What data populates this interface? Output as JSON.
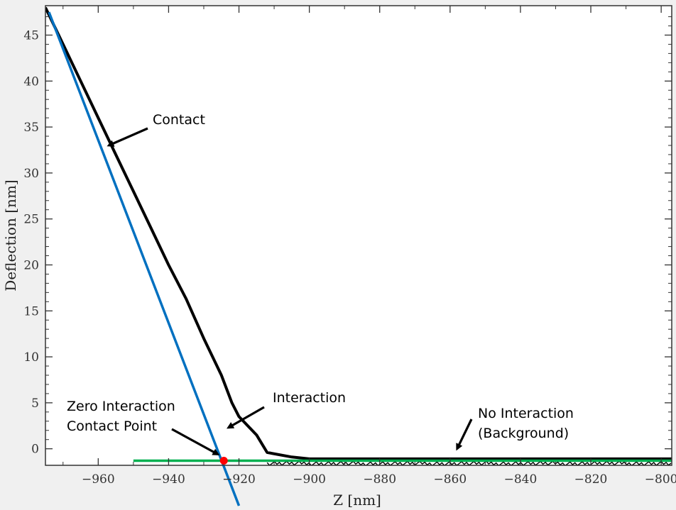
{
  "chart_data": {
    "type": "line",
    "title": "",
    "xlabel": "Z [nm]",
    "ylabel": "Deflection [nm]",
    "xlim": [
      -975,
      -797
    ],
    "ylim": [
      -1.8,
      48.2
    ],
    "xticks": [
      -960,
      -940,
      -920,
      -900,
      -880,
      -860,
      -840,
      -820,
      -800
    ],
    "xtick_labels": [
      "−960",
      "−940",
      "−920",
      "−900",
      "−880",
      "−860",
      "−840",
      "−820",
      "−800"
    ],
    "yticks": [
      0,
      5,
      10,
      15,
      20,
      25,
      30,
      35,
      40,
      45
    ],
    "ytick_labels": [
      "0",
      "5",
      "10",
      "15",
      "20",
      "25",
      "30",
      "35",
      "40",
      "45"
    ],
    "grid": false,
    "series": [
      {
        "role": "measured",
        "color": "#000000",
        "points": [
          [
            -975,
            48.0
          ],
          [
            -970,
            44.0
          ],
          [
            -965,
            40.0
          ],
          [
            -960,
            36.0
          ],
          [
            -955,
            32.0
          ],
          [
            -950,
            28.0
          ],
          [
            -945,
            24.0
          ],
          [
            -940,
            20.0
          ],
          [
            -935,
            16.3
          ],
          [
            -930,
            12.0
          ],
          [
            -925,
            8.0
          ],
          [
            -922,
            5.0
          ],
          [
            -920,
            3.5
          ],
          [
            -915,
            1.5
          ],
          [
            -912,
            -0.4
          ],
          [
            -905,
            -0.9
          ],
          [
            -900,
            -1.1
          ],
          [
            -880,
            -1.1
          ],
          [
            -860,
            -1.1
          ],
          [
            -840,
            -1.1
          ],
          [
            -820,
            -1.1
          ],
          [
            -797,
            -1.1
          ]
        ]
      },
      {
        "role": "contact-fit",
        "color": "#0070c0",
        "points": [
          [
            -974,
            47.5
          ],
          [
            -920,
            -6.2
          ]
        ]
      },
      {
        "role": "background-fit",
        "color": "#00b050",
        "points": [
          [
            -950,
            -1.3
          ],
          [
            -797,
            -1.3
          ]
        ]
      }
    ],
    "highlight_point": {
      "x": -924.3,
      "y": -1.3,
      "color": "#ff0000"
    },
    "annotations": [
      {
        "id": "contact",
        "text": "Contact",
        "point_to": [
          -957,
          33.0
        ]
      },
      {
        "id": "interaction",
        "text": "Interaction",
        "point_to": [
          -923,
          2.3
        ]
      },
      {
        "id": "zero",
        "lines": [
          "Zero Interaction",
          "Contact Point"
        ],
        "point_to": [
          -926,
          -0.6
        ]
      },
      {
        "id": "background",
        "lines": [
          "No Interaction",
          "(Background)"
        ],
        "point_to": [
          -858,
          0.0
        ]
      }
    ]
  }
}
